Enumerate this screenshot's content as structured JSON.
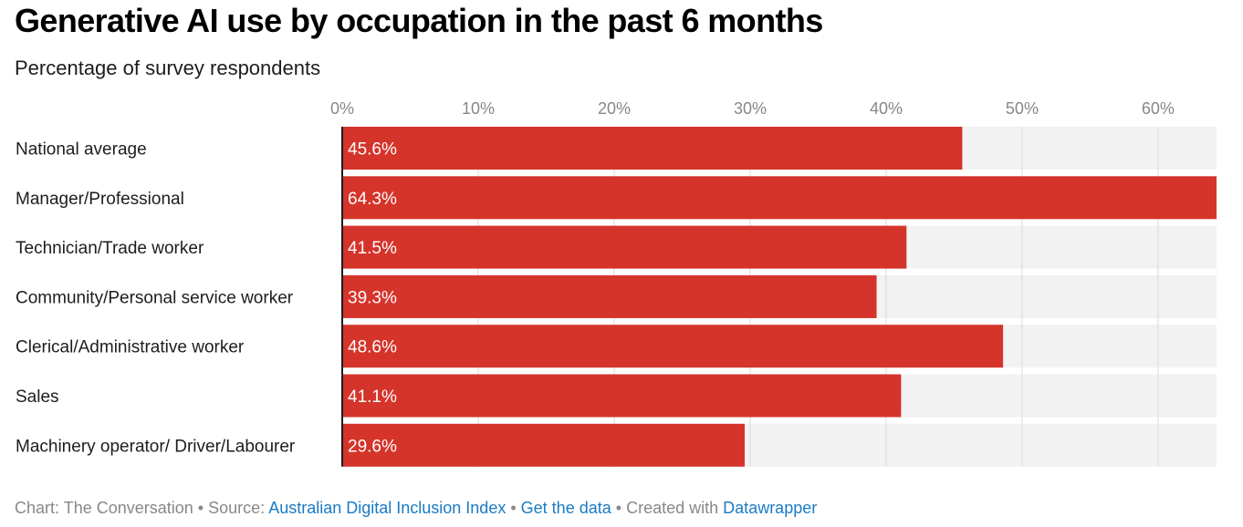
{
  "chart_data": {
    "type": "bar",
    "orientation": "horizontal",
    "title": "Generative AI use by occupation in the past 6 months",
    "subtitle": "Percentage of survey respondents",
    "categories": [
      "National average",
      "Manager/Professional",
      "Technician/Trade worker",
      "Community/Personal service worker",
      "Clerical/Administrative worker",
      "Sales",
      "Machinery operator/ Driver/Labourer"
    ],
    "values": [
      45.6,
      64.3,
      41.5,
      39.3,
      48.6,
      41.1,
      29.6
    ],
    "value_labels": [
      "45.6%",
      "64.3%",
      "41.5%",
      "39.3%",
      "48.6%",
      "41.1%",
      "29.6%"
    ],
    "xlim": [
      0,
      64.3
    ],
    "x_ticks": [
      0,
      10,
      20,
      30,
      40,
      50,
      60
    ],
    "x_tick_labels": [
      "0%",
      "10%",
      "20%",
      "30%",
      "40%",
      "50%",
      "60%"
    ],
    "xlabel": "",
    "ylabel": "",
    "grid": true,
    "bar_color": "#d5342b",
    "track_color": "#f2f2f2"
  },
  "footer": {
    "chart_label": "Chart: The Conversation",
    "source_prefix": "Source:",
    "source_link": "Australian Digital Inclusion Index",
    "data_link": "Get the data",
    "created_prefix": "Created with",
    "created_link": "Datawrapper",
    "separator": "•"
  },
  "colors": {
    "link": "#1a7bc4",
    "footer_text": "#888888",
    "gridline": "#d9d9d9",
    "axis": "#1d1d1d"
  }
}
